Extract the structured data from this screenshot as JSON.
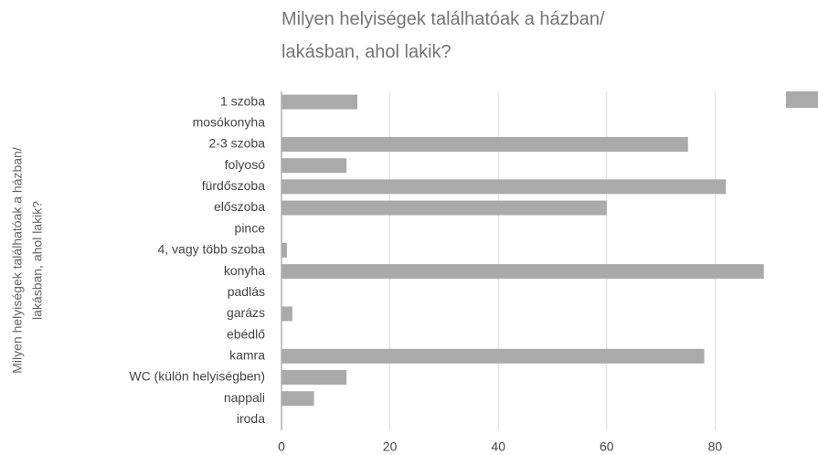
{
  "chart_data": {
    "type": "hbar",
    "title": [
      "Milyen helyiségek találhatóak a házban/",
      "lakásban, ahol lakik?"
    ],
    "y_label": [
      "Milyen helyiségek találhatóak a házban/",
      "lakásban, ahol lakik?"
    ],
    "categories": [
      "1 szoba",
      "mosókonyha",
      "2-3 szoba",
      "folyosó",
      "fürdőszoba",
      "előszoba",
      "pince",
      "4, vagy több szoba",
      "konyha",
      "padlás",
      "garázs",
      "ebédlő",
      "kamra",
      "WC (külön helyiségben)",
      "nappali",
      "iroda"
    ],
    "values": [
      14,
      0,
      75,
      12,
      82,
      60,
      0,
      1,
      89,
      0,
      2,
      0,
      78,
      12,
      6,
      0
    ],
    "color": "#aaaaaa",
    "xlim": [
      0,
      92
    ],
    "xticks": [
      0,
      20,
      40,
      60,
      80
    ],
    "grid": true,
    "legend": "top-right"
  }
}
